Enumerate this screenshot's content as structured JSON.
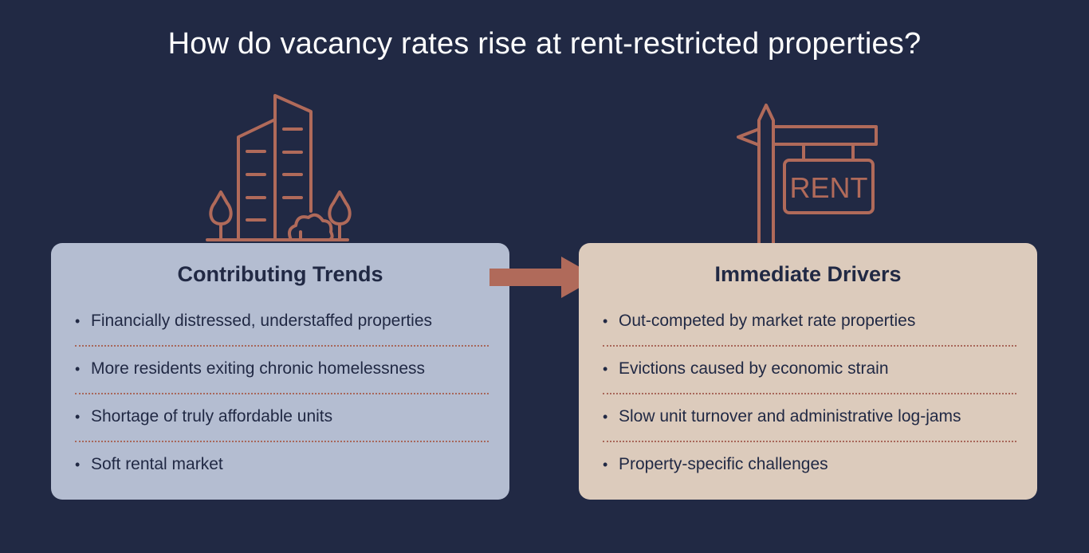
{
  "title": "How do vacancy rates rise at rent-restricted properties?",
  "colors": {
    "background": "#212944",
    "accent": "#b06a5a",
    "left_card": "#b4bdd1",
    "right_card": "#dccbbc",
    "text_dark": "#212944"
  },
  "left_panel": {
    "icon": "building-with-trees-icon",
    "heading": "Contributing Trends",
    "items": [
      "Financially distressed, understaffed properties",
      "More residents exiting chronic homelessness",
      "Shortage of truly affordable units",
      "Soft rental market"
    ]
  },
  "right_panel": {
    "icon": "rent-sign-icon",
    "heading": "Immediate Drivers",
    "sign_text": "RENT",
    "items": [
      "Out-competed by market rate properties",
      "Evictions caused by economic strain",
      "Slow unit turnover and administrative log-jams",
      "Property-specific challenges"
    ]
  },
  "connector": {
    "icon": "right-arrow-icon"
  },
  "bullet": "•"
}
